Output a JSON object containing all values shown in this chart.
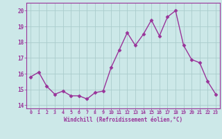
{
  "x": [
    0,
    1,
    2,
    3,
    4,
    5,
    6,
    7,
    8,
    9,
    10,
    11,
    12,
    13,
    14,
    15,
    16,
    17,
    18,
    19,
    20,
    21,
    22,
    23
  ],
  "y": [
    15.8,
    16.1,
    15.2,
    14.7,
    14.9,
    14.6,
    14.6,
    14.4,
    14.8,
    14.9,
    16.4,
    17.5,
    18.6,
    17.8,
    18.5,
    19.4,
    18.4,
    19.6,
    20.0,
    17.8,
    16.9,
    16.7,
    15.5,
    14.7
  ],
  "line_color": "#993399",
  "marker": "D",
  "markersize": 2.5,
  "linewidth": 1.0,
  "bg_color": "#cce8e8",
  "grid_color": "#aacccc",
  "xlabel": "Windchill (Refroidissement éolien,°C)",
  "xlabel_color": "#993399",
  "tick_color": "#993399",
  "spine_color": "#993399",
  "ylim": [
    13.8,
    20.5
  ],
  "xlim": [
    -0.5,
    23.5
  ],
  "yticks": [
    14,
    15,
    16,
    17,
    18,
    19,
    20
  ],
  "xtick_labels": [
    "0",
    "1",
    "2",
    "3",
    "4",
    "5",
    "6",
    "7",
    "8",
    "9",
    "10",
    "11",
    "12",
    "13",
    "14",
    "15",
    "16",
    "17",
    "18",
    "19",
    "20",
    "21",
    "22",
    "23"
  ]
}
